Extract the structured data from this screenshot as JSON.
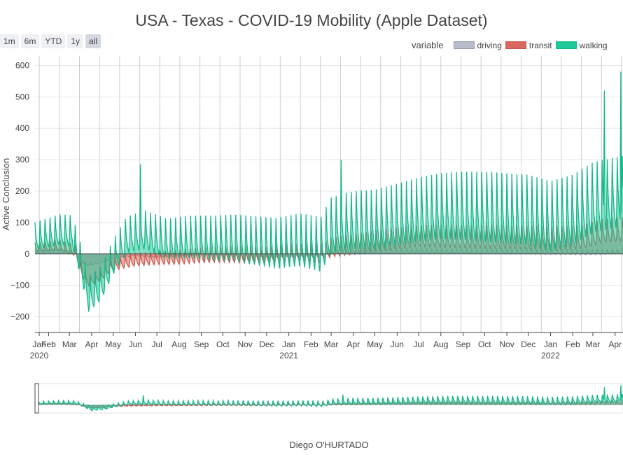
{
  "title": "USA - Texas - COVID-19 Mobility (Apple Dataset)",
  "range_buttons": [
    "1m",
    "6m",
    "YTD",
    "1y",
    "all"
  ],
  "active_range": "all",
  "author": "Diego O'HURTADO",
  "chart_data": {
    "type": "area",
    "title": "USA - Texas - COVID-19 Mobility (Apple Dataset)",
    "ylabel": "Active Conclusion",
    "xlabel": "",
    "x_range": [
      "2020-01-13",
      "2022-04-12"
    ],
    "ylim": [
      -250,
      630
    ],
    "y_ticks": [
      -200,
      -100,
      0,
      100,
      200,
      300,
      400,
      500,
      600
    ],
    "x_ticks": [
      {
        "date": "2020-01-01",
        "label": "Jan",
        "year": "2020"
      },
      {
        "date": "2020-02-01",
        "label": "Feb",
        "year": ""
      },
      {
        "date": "2020-03-01",
        "label": "Mar",
        "year": ""
      },
      {
        "date": "2020-04-01",
        "label": "Apr",
        "year": ""
      },
      {
        "date": "2020-05-01",
        "label": "May",
        "year": ""
      },
      {
        "date": "2020-06-01",
        "label": "Jun",
        "year": ""
      },
      {
        "date": "2020-07-01",
        "label": "Jul",
        "year": ""
      },
      {
        "date": "2020-08-01",
        "label": "Aug",
        "year": ""
      },
      {
        "date": "2020-09-01",
        "label": "Sep",
        "year": ""
      },
      {
        "date": "2020-10-01",
        "label": "Oct",
        "year": ""
      },
      {
        "date": "2020-11-01",
        "label": "Nov",
        "year": ""
      },
      {
        "date": "2020-12-01",
        "label": "Dec",
        "year": ""
      },
      {
        "date": "2021-01-01",
        "label": "Jan",
        "year": "2021"
      },
      {
        "date": "2021-02-01",
        "label": "Feb",
        "year": ""
      },
      {
        "date": "2021-03-01",
        "label": "Mar",
        "year": ""
      },
      {
        "date": "2021-04-01",
        "label": "Apr",
        "year": ""
      },
      {
        "date": "2021-05-01",
        "label": "May",
        "year": ""
      },
      {
        "date": "2021-06-01",
        "label": "Jun",
        "year": ""
      },
      {
        "date": "2021-07-01",
        "label": "Jul",
        "year": ""
      },
      {
        "date": "2021-08-01",
        "label": "Aug",
        "year": ""
      },
      {
        "date": "2021-09-01",
        "label": "Sep",
        "year": ""
      },
      {
        "date": "2021-10-01",
        "label": "Oct",
        "year": ""
      },
      {
        "date": "2021-11-01",
        "label": "Nov",
        "year": ""
      },
      {
        "date": "2021-12-01",
        "label": "Dec",
        "year": ""
      },
      {
        "date": "2022-01-01",
        "label": "Jan",
        "year": "2022"
      },
      {
        "date": "2022-02-01",
        "label": "Feb",
        "year": ""
      },
      {
        "date": "2022-03-01",
        "label": "Mar",
        "year": ""
      },
      {
        "date": "2022-04-01",
        "label": "Apr",
        "year": ""
      }
    ],
    "legend_title": "variable",
    "legend_position": "top-right",
    "grid": true,
    "vertical_grid_dates": [
      "2020-01-19",
      "2020-02-16",
      "2020-03-15",
      "2020-04-12",
      "2020-05-10",
      "2020-06-07",
      "2020-07-05",
      "2020-08-02",
      "2020-08-30",
      "2020-09-27",
      "2020-10-25",
      "2020-11-22",
      "2020-12-20",
      "2021-01-17",
      "2021-02-14",
      "2021-03-14",
      "2021-04-11",
      "2021-05-09",
      "2021-06-06",
      "2021-07-04",
      "2021-08-01",
      "2021-08-29",
      "2021-09-26",
      "2021-10-24",
      "2021-11-21",
      "2021-12-19",
      "2022-01-16",
      "2022-02-13",
      "2022-03-13",
      "2022-04-10"
    ],
    "weekly_period_days": 7,
    "series": [
      {
        "name": "driving",
        "color": "#b9bccb",
        "line_color": "#9599ab",
        "points": [
          [
            "2020-01-13",
            8
          ],
          [
            "2020-02-15",
            14
          ],
          [
            "2020-03-10",
            0
          ],
          [
            "2020-03-17",
            -20
          ],
          [
            "2020-03-25",
            -35
          ],
          [
            "2020-04-15",
            -28
          ],
          [
            "2020-05-01",
            -12
          ],
          [
            "2020-06-01",
            -3
          ],
          [
            "2020-07-01",
            -8
          ],
          [
            "2020-08-01",
            -5
          ],
          [
            "2020-09-01",
            -3
          ],
          [
            "2020-10-01",
            -5
          ],
          [
            "2020-11-01",
            -8
          ],
          [
            "2020-12-01",
            -12
          ],
          [
            "2021-01-01",
            -10
          ],
          [
            "2021-02-15",
            -8
          ],
          [
            "2021-03-01",
            2
          ],
          [
            "2021-05-01",
            5
          ],
          [
            "2021-07-01",
            8
          ],
          [
            "2021-09-01",
            6
          ],
          [
            "2021-11-01",
            5
          ],
          [
            "2022-01-01",
            4
          ],
          [
            "2022-02-15",
            3
          ],
          [
            "2022-04-12",
            5
          ]
        ]
      },
      {
        "name": "transit",
        "color": "#d9675d",
        "line_color": "#c8584e",
        "points": [
          [
            "2020-01-13",
            15
          ],
          [
            "2020-02-15",
            22
          ],
          [
            "2020-03-10",
            5
          ],
          [
            "2020-03-17",
            -55
          ],
          [
            "2020-03-28",
            -90
          ],
          [
            "2020-04-15",
            -70
          ],
          [
            "2020-05-01",
            -40
          ],
          [
            "2020-06-01",
            -25
          ],
          [
            "2020-07-01",
            -20
          ],
          [
            "2020-08-01",
            -18
          ],
          [
            "2020-09-01",
            -12
          ],
          [
            "2020-10-01",
            -10
          ],
          [
            "2020-11-01",
            -12
          ],
          [
            "2020-12-01",
            -15
          ],
          [
            "2021-01-01",
            -5
          ],
          [
            "2021-02-15",
            -8
          ],
          [
            "2021-03-01",
            10
          ],
          [
            "2021-05-01",
            30
          ],
          [
            "2021-07-01",
            45
          ],
          [
            "2021-09-01",
            42
          ],
          [
            "2021-11-01",
            40
          ],
          [
            "2022-01-01",
            35
          ],
          [
            "2022-02-15",
            40
          ],
          [
            "2022-03-15",
            60
          ],
          [
            "2022-04-12",
            65
          ]
        ]
      },
      {
        "name": "walking",
        "color": "#1fc99a",
        "line_color": "#14b889",
        "points": [
          [
            "2020-01-13",
            40
          ],
          [
            "2020-02-15",
            60
          ],
          [
            "2020-03-05",
            55
          ],
          [
            "2020-03-17",
            -40
          ],
          [
            "2020-03-28",
            -150
          ],
          [
            "2020-04-15",
            -110
          ],
          [
            "2020-05-01",
            -30
          ],
          [
            "2020-05-20",
            40
          ],
          [
            "2020-06-15",
            55
          ],
          [
            "2020-07-15",
            25
          ],
          [
            "2020-08-15",
            30
          ],
          [
            "2020-09-15",
            25
          ],
          [
            "2020-10-15",
            25
          ],
          [
            "2020-11-15",
            15
          ],
          [
            "2020-12-15",
            5
          ],
          [
            "2021-01-15",
            15
          ],
          [
            "2021-02-15",
            0
          ],
          [
            "2021-03-01",
            60
          ],
          [
            "2021-04-01",
            75
          ],
          [
            "2021-05-01",
            75
          ],
          [
            "2021-06-01",
            90
          ],
          [
            "2021-07-01",
            105
          ],
          [
            "2021-08-01",
            115
          ],
          [
            "2021-09-01",
            115
          ],
          [
            "2021-10-01",
            110
          ],
          [
            "2021-11-01",
            105
          ],
          [
            "2021-12-01",
            100
          ],
          [
            "2022-01-01",
            80
          ],
          [
            "2022-02-01",
            100
          ],
          [
            "2022-03-01",
            140
          ],
          [
            "2022-04-12",
            160
          ]
        ]
      }
    ],
    "weekly_amplitude": {
      "driving": 12,
      "transit": 55,
      "walking": 160
    },
    "notable_spikes": [
      {
        "date": "2020-06-08",
        "y": 285
      },
      {
        "date": "2021-03-15",
        "y": 300
      },
      {
        "date": "2022-03-17",
        "y": 520
      },
      {
        "date": "2022-04-09",
        "y": 580
      }
    ]
  }
}
